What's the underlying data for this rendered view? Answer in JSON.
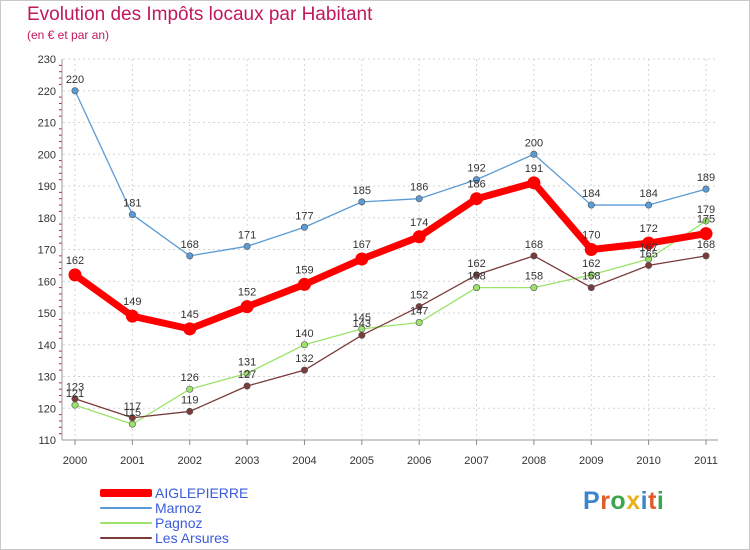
{
  "chart_data": {
    "type": "line",
    "title": "Evolution des Impôts locaux par Habitant",
    "subtitle": "(en € et par an)",
    "x": [
      "2000",
      "2001",
      "2002",
      "2003",
      "2004",
      "2005",
      "2006",
      "2007",
      "2008",
      "2009",
      "2010",
      "2011"
    ],
    "ylim": [
      110,
      230
    ],
    "yticks": [
      110,
      120,
      130,
      140,
      150,
      160,
      170,
      180,
      190,
      200,
      210,
      220,
      230
    ],
    "grid": true,
    "series": [
      {
        "name": "AIGLEPIERRE",
        "color": "#ff0000",
        "values": [
          162,
          149,
          145,
          152,
          159,
          167,
          174,
          186,
          191,
          170,
          172,
          175
        ]
      },
      {
        "name": "Marnoz",
        "color": "#5b9bd5",
        "values": [
          220,
          181,
          168,
          171,
          177,
          185,
          186,
          192,
          200,
          184,
          184,
          189
        ]
      },
      {
        "name": "Pagnoz",
        "color": "#9be36b",
        "values": [
          121,
          115,
          126,
          131,
          140,
          145,
          147,
          158,
          158,
          162,
          167,
          179
        ]
      },
      {
        "name": "Les Arsures",
        "color": "#7a3b3b",
        "values": [
          123,
          117,
          119,
          127,
          132,
          143,
          152,
          162,
          168,
          158,
          165,
          168
        ]
      }
    ]
  },
  "logo": {
    "text": "Proxiti",
    "letter_colors": [
      "#3a86c8",
      "#e05a2a",
      "#3aa54a",
      "#e8b21c",
      "#3a86c8",
      "#e05a2a",
      "#3aa54a"
    ]
  }
}
